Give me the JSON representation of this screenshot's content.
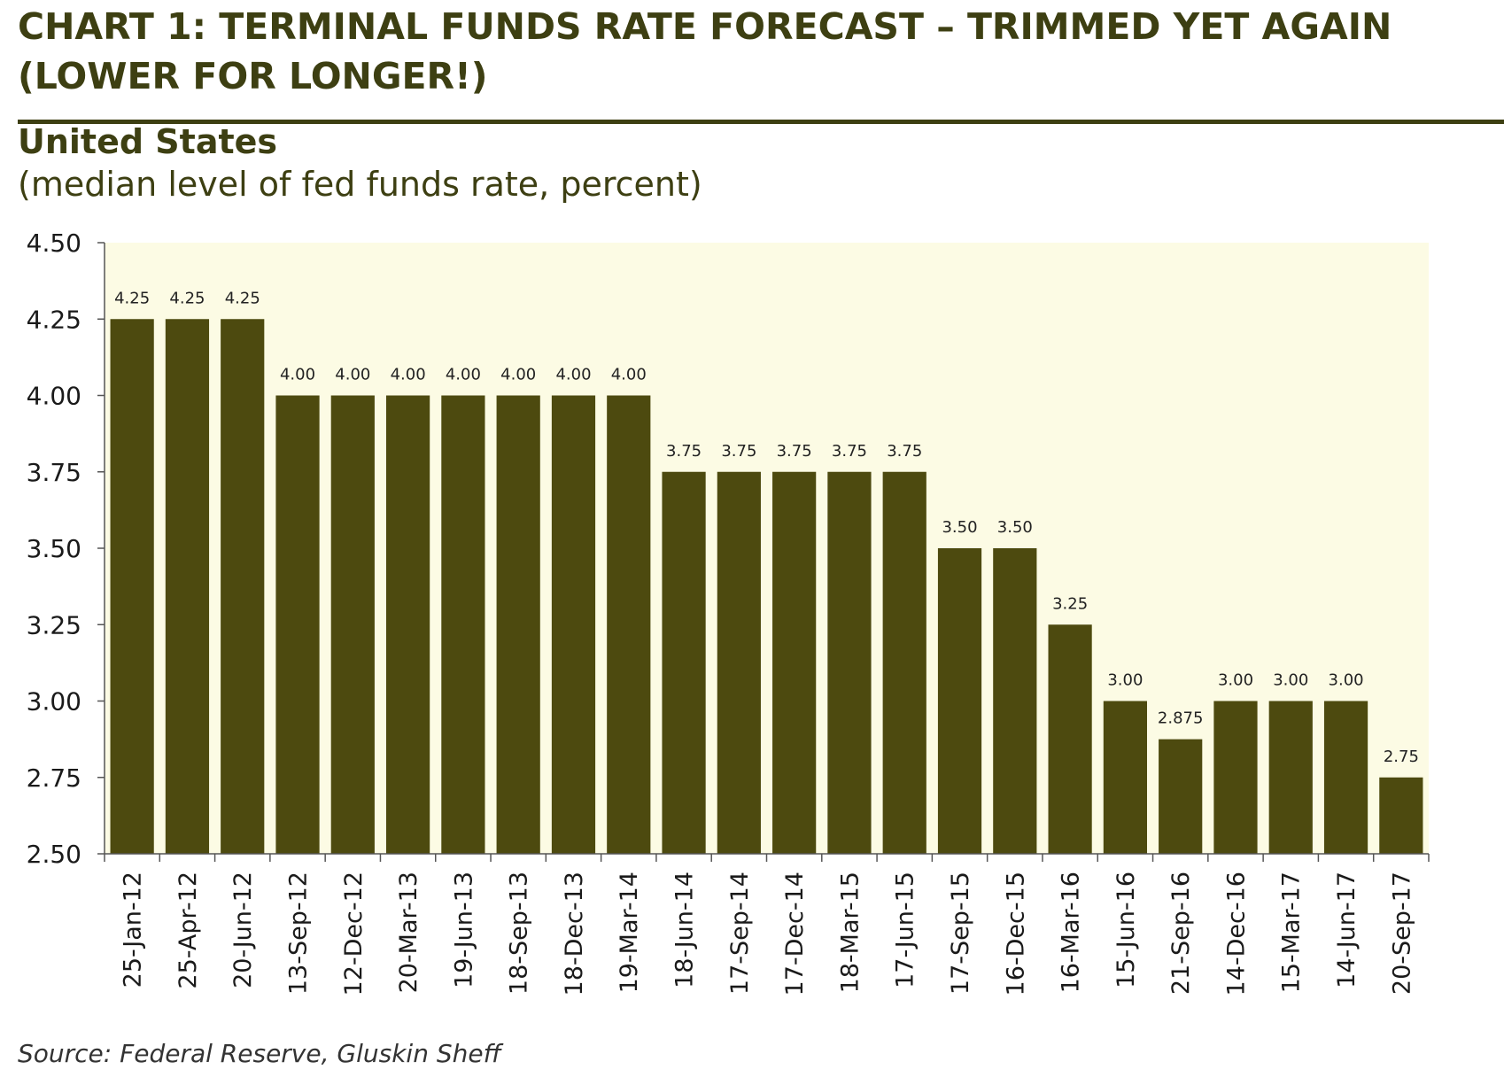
{
  "header": {
    "title": "CHART 1: TERMINAL FUNDS RATE FORECAST – TRIMMED YET AGAIN (LOWER FOR LONGER!)",
    "subtitle": "United States",
    "subtitle_note": "(median level of fed funds rate, percent)"
  },
  "footer": {
    "source": "Source: Federal Reserve, Gluskin Sheff"
  },
  "colors": {
    "bar": "#4d4a0f",
    "plot_background": "#fcfbe4",
    "text": "#3d3f12",
    "axis": "#555555"
  },
  "chart_data": {
    "type": "bar",
    "title": "",
    "xlabel": "",
    "ylabel": "",
    "ylim": [
      2.5,
      4.5
    ],
    "yticks": [
      "4.50",
      "4.25",
      "4.00",
      "3.75",
      "3.50",
      "3.25",
      "3.00",
      "2.75",
      "2.50"
    ],
    "grid": false,
    "categories": [
      "25-Jan-12",
      "25-Apr-12",
      "20-Jun-12",
      "13-Sep-12",
      "12-Dec-12",
      "20-Mar-13",
      "19-Jun-13",
      "18-Sep-13",
      "18-Dec-13",
      "19-Mar-14",
      "18-Jun-14",
      "17-Sep-14",
      "17-Dec-14",
      "18-Mar-15",
      "17-Jun-15",
      "17-Sep-15",
      "16-Dec-15",
      "16-Mar-16",
      "15-Jun-16",
      "21-Sep-16",
      "14-Dec-16",
      "15-Mar-17",
      "14-Jun-17",
      "20-Sep-17"
    ],
    "values": [
      4.25,
      4.25,
      4.25,
      4.0,
      4.0,
      4.0,
      4.0,
      4.0,
      4.0,
      4.0,
      3.75,
      3.75,
      3.75,
      3.75,
      3.75,
      3.5,
      3.5,
      3.25,
      3.0,
      2.875,
      3.0,
      3.0,
      3.0,
      2.75
    ],
    "data_labels": [
      "4.25",
      "4.25",
      "4.25",
      "4.00",
      "4.00",
      "4.00",
      "4.00",
      "4.00",
      "4.00",
      "4.00",
      "3.75",
      "3.75",
      "3.75",
      "3.75",
      "3.75",
      "3.50",
      "3.50",
      "3.25",
      "3.00",
      "2.875",
      "3.00",
      "3.00",
      "3.00",
      "2.75"
    ]
  }
}
